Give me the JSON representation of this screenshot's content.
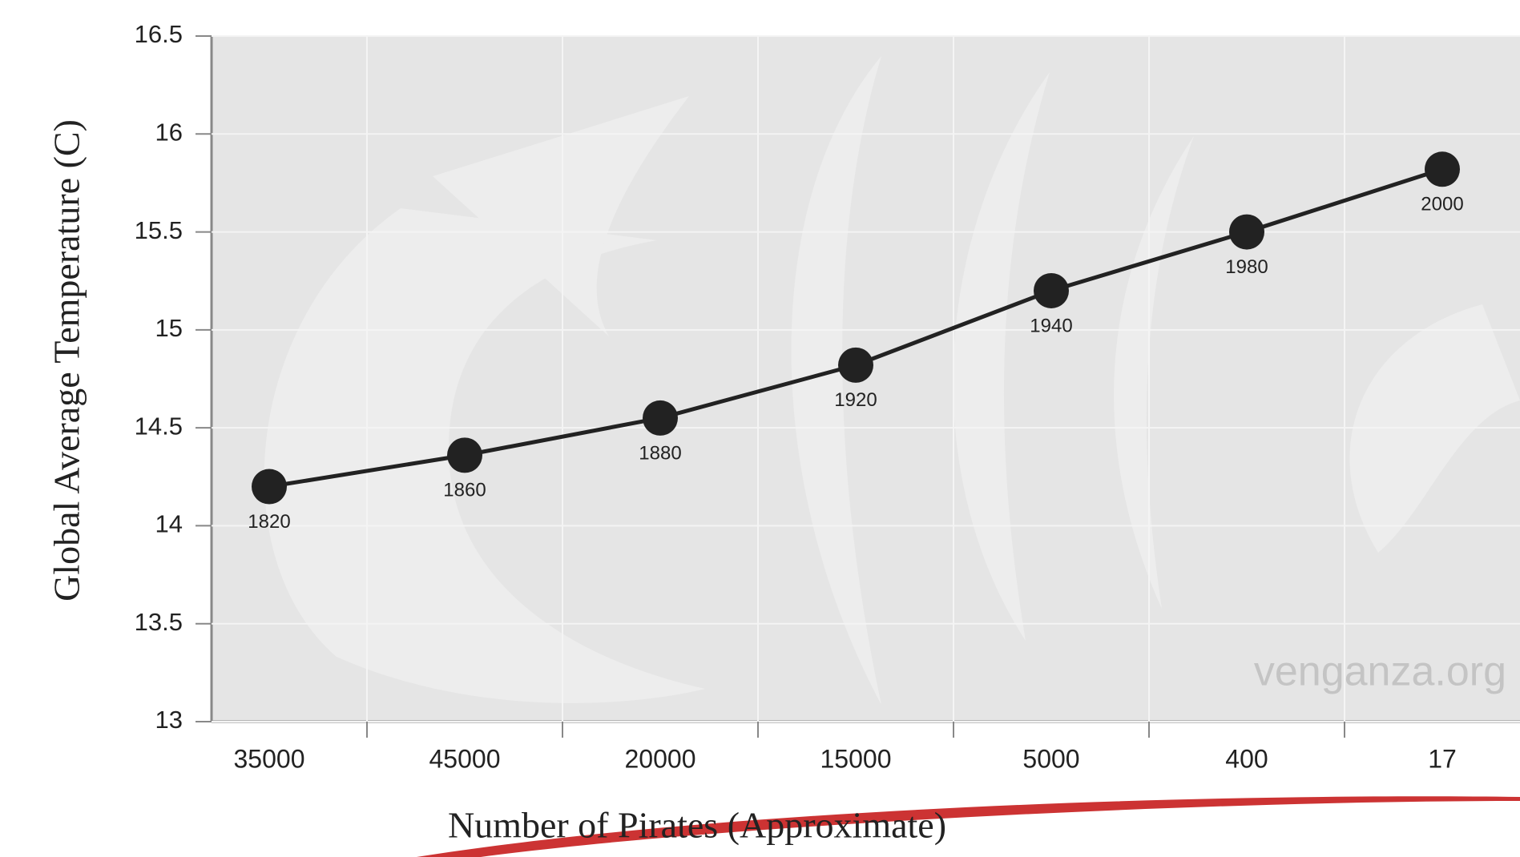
{
  "chart_data": {
    "type": "line",
    "categories": [
      "35000",
      "45000",
      "20000",
      "15000",
      "5000",
      "400",
      "17"
    ],
    "series": [
      {
        "color": "#222222",
        "values": [
          14.2,
          14.36,
          14.55,
          14.82,
          15.2,
          15.5,
          15.82
        ]
      }
    ],
    "point_labels": [
      "1820",
      "1860",
      "1880",
      "1920",
      "1940",
      "1980",
      "2000"
    ],
    "ylim": [
      13,
      16.5
    ],
    "yticks": [
      13,
      13.5,
      14,
      14.5,
      15,
      15.5,
      16,
      16.5
    ],
    "grid": true,
    "ylabel": "Global Average Temperature (C)",
    "xlabel": "Number of Pirates (Approximate)",
    "watermark": "venganza.org"
  }
}
